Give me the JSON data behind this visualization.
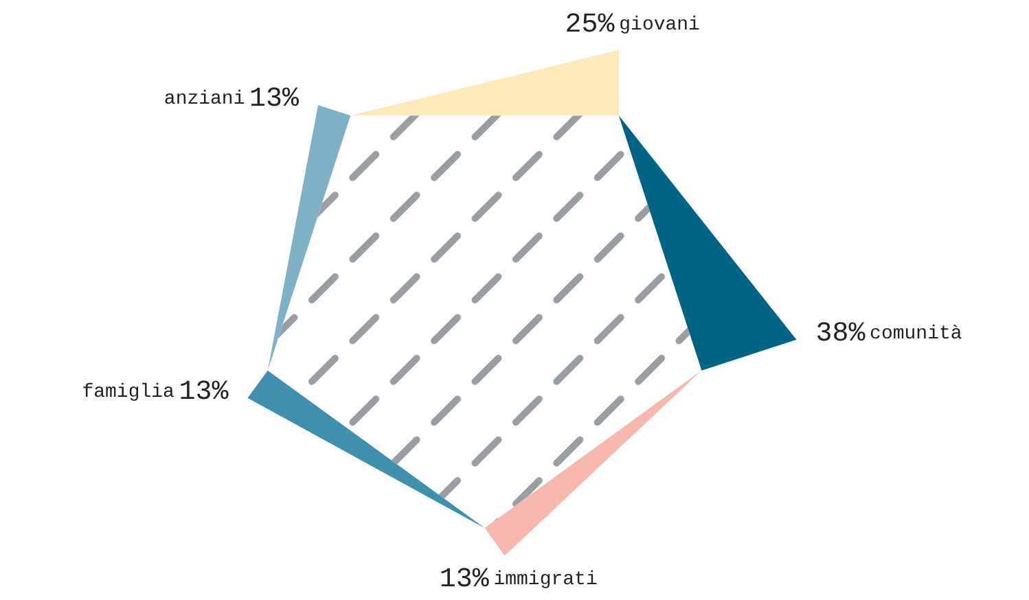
{
  "chart_data": {
    "type": "other",
    "categories": [
      "giovani",
      "comunità",
      "immigrati",
      "famiglia",
      "anziani"
    ],
    "values": [
      25,
      38,
      13,
      13,
      13
    ],
    "value_labels": [
      "25%",
      "38%",
      "13%",
      "13%",
      "13%"
    ],
    "colors": [
      "#fdeab8",
      "#006584",
      "#f7b7ad",
      "#3e90ac",
      "#7eb1c5"
    ]
  }
}
